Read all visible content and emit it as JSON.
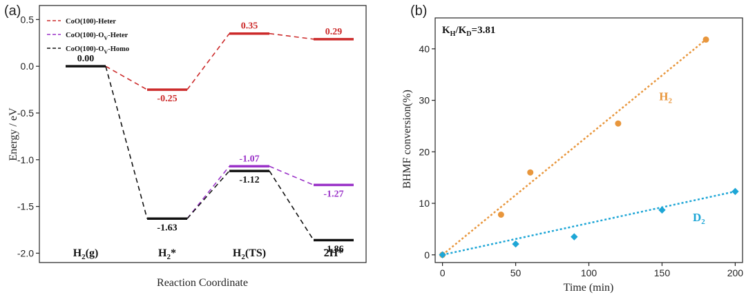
{
  "chart_data": [
    {
      "panel_label": "(a)",
      "type": "line",
      "subtype": "energy-profile",
      "title": "",
      "xlabel": "Reaction Coordinate",
      "ylabel": "Energy / eV",
      "ylim": [
        -2.1,
        0.65
      ],
      "yticks": [
        "0.5",
        "0.0",
        "-0.5",
        "-1.0",
        "-1.5",
        "-2.0"
      ],
      "ytick_values": [
        0.5,
        0.0,
        -0.5,
        -1.0,
        -1.5,
        -2.0
      ],
      "categories": [
        {
          "pre": "H",
          "sub": "2",
          "post": "(g)"
        },
        {
          "pre": "H",
          "sub": "2",
          "post": "*"
        },
        {
          "pre": "H",
          "sub": "2",
          "post": "(TS)"
        },
        {
          "pre": "2H*",
          "sub": "",
          "post": ""
        }
      ],
      "legend": [
        {
          "pre": "CoO(100)-Heter",
          "sub": "",
          "post": "",
          "color": "#cc2a2a"
        },
        {
          "pre": "CoO(100)-O",
          "sub": "V",
          "post": "-Heter",
          "color": "#9a32c8"
        },
        {
          "pre": "CoO(100)-O",
          "sub": "V",
          "post": "-Homo",
          "color": "#111111"
        }
      ],
      "series": [
        {
          "name": "CoO(100)-Heter",
          "color": "#cc2a2a",
          "points": [
            {
              "i": 0,
              "v": 0.0,
              "shared": true
            },
            {
              "i": 1,
              "v": -0.25,
              "label": "-0.25"
            },
            {
              "i": 2,
              "v": 0.35,
              "label": "0.35"
            },
            {
              "i": 3,
              "v": 0.29,
              "label": "0.29"
            }
          ]
        },
        {
          "name": "CoO(100)-OV-Heter",
          "color": "#9a32c8",
          "points": [
            {
              "i": 1,
              "v": -1.63,
              "shared": true
            },
            {
              "i": 2,
              "v": -1.07,
              "label": "-1.07"
            },
            {
              "i": 3,
              "v": -1.27,
              "label": "-1.27"
            }
          ]
        },
        {
          "name": "CoO(100)-OV-Homo",
          "color": "#111111",
          "points": [
            {
              "i": 0,
              "v": 0.0,
              "label": "0.00"
            },
            {
              "i": 1,
              "v": -1.63,
              "label": "-1.63"
            },
            {
              "i": 2,
              "v": -1.12,
              "label": "-1.12"
            },
            {
              "i": 3,
              "v": -1.86,
              "label": "-1.86"
            }
          ]
        }
      ]
    },
    {
      "panel_label": "(b)",
      "type": "scatter",
      "title": "",
      "xlabel": "Time (min)",
      "ylabel": "BHMF conversion(%)",
      "xlim": [
        -5,
        205
      ],
      "ylim": [
        -1.5,
        46
      ],
      "xticks": [
        0,
        50,
        100,
        150,
        200
      ],
      "yticks": [
        0,
        10,
        20,
        30,
        40
      ],
      "annotation": {
        "a": "K",
        "a_sub": "H",
        "mid": "/K",
        "b_sub": "D",
        "post": "=3.81"
      },
      "series": [
        {
          "name": "H2",
          "label_pre": "H",
          "label_sub": "2",
          "color": "#e8963c",
          "marker": "circle",
          "x": [
            0,
            40,
            60,
            120,
            180
          ],
          "y": [
            0,
            7.8,
            16,
            25.5,
            41.8
          ],
          "fit": {
            "x": [
              0,
              180
            ],
            "y": [
              0,
              41.8
            ]
          },
          "label_at": {
            "x": 148,
            "y": 30
          }
        },
        {
          "name": "D2",
          "label_pre": "D",
          "label_sub": "2",
          "color": "#1ea6d6",
          "marker": "diamond",
          "x": [
            0,
            50,
            90,
            150,
            200
          ],
          "y": [
            0,
            2.1,
            3.5,
            8.7,
            12.3
          ],
          "fit": {
            "x": [
              0,
              200
            ],
            "y": [
              0,
              12.3
            ]
          },
          "label_at": {
            "x": 171,
            "y": 6.5
          }
        }
      ]
    }
  ]
}
